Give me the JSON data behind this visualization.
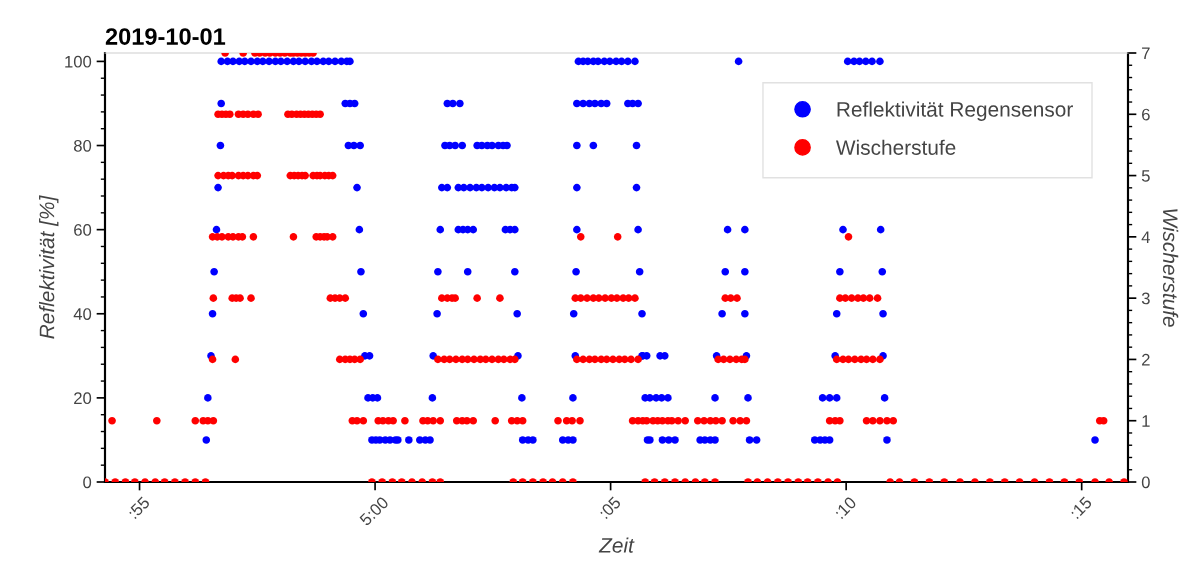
{
  "chart_data": {
    "type": "scatter",
    "title": "2019-10-01",
    "xlabel": "Zeit",
    "ylabel": "Reflektivität [%]",
    "y2label": "Wischerstufe",
    "xlim": [
      "2019-10-01T04:54:16",
      "2019-10-01T05:15:59"
    ],
    "xticks": [
      {
        "value": "2019-10-01T04:55",
        "label": ":55"
      },
      {
        "value": "2019-10-01T05:00",
        "label": "5:00"
      },
      {
        "value": "2019-10-01T05:05",
        "label": ":05"
      },
      {
        "value": "2019-10-01T05:10",
        "label": ":10"
      },
      {
        "value": "2019-10-01T05:15",
        "label": ":15"
      }
    ],
    "ylim": [
      0,
      102
    ],
    "yticks": [
      0,
      20,
      40,
      60,
      80,
      100
    ],
    "y2lim": [
      0,
      7
    ],
    "y2ticks": [
      0,
      1,
      2,
      3,
      4,
      5,
      6,
      7
    ],
    "marker": "circle",
    "legend": "top right",
    "series": [
      {
        "name": "Reflektivität Regensensor",
        "color": "#0000ff",
        "x": [
          "2019-10-01T04:56:25",
          "2019-10-01T04:56:27",
          "2019-10-01T04:56:31",
          "2019-10-01T04:56:33",
          "2019-10-01T04:56:35",
          "2019-10-01T04:56:38",
          "2019-10-01T04:56:40",
          "2019-10-01T04:56:43",
          "2019-10-01T04:56:44",
          "2019-10-01T04:56:44",
          "2019-10-01T04:56:52",
          "2019-10-01T04:56:59",
          "2019-10-01T04:57:07",
          "2019-10-01T04:57:14",
          "2019-10-01T04:57:22",
          "2019-10-01T04:57:30",
          "2019-10-01T04:57:37",
          "2019-10-01T04:57:45",
          "2019-10-01T04:57:53",
          "2019-10-01T04:58:00",
          "2019-10-01T04:58:08",
          "2019-10-01T04:58:16",
          "2019-10-01T04:58:23",
          "2019-10-01T04:58:31",
          "2019-10-01T04:58:39",
          "2019-10-01T04:58:46",
          "2019-10-01T04:58:54",
          "2019-10-01T04:59:01",
          "2019-10-01T04:59:09",
          "2019-10-01T04:59:17",
          "2019-10-01T04:59:24",
          "2019-10-01T04:59:28",
          "2019-10-01T04:59:22",
          "2019-10-01T04:59:28",
          "2019-10-01T04:59:34",
          "2019-10-01T04:59:26",
          "2019-10-01T04:59:33",
          "2019-10-01T04:59:41",
          "2019-10-01T04:59:37",
          "2019-10-01T04:59:40",
          "2019-10-01T04:59:42",
          "2019-10-01T04:59:45",
          "2019-10-01T04:59:47",
          "2019-10-01T04:59:53",
          "2019-10-01T04:59:51",
          "2019-10-01T04:59:57",
          "2019-10-01T05:00:03",
          "2019-10-01T04:59:56",
          "2019-10-01T05:00:01",
          "2019-10-01T05:00:06",
          "2019-10-01T05:00:13",
          "2019-10-01T05:00:19",
          "2019-10-01T05:00:26",
          "2019-10-01T05:00:29",
          "2019-10-01T05:00:43",
          "2019-10-01T05:00:57",
          "2019-10-01T05:01:04",
          "2019-10-01T05:01:10",
          "2019-10-01T05:01:13",
          "2019-10-01T05:01:14",
          "2019-10-01T05:01:19",
          "2019-10-01T05:01:20",
          "2019-10-01T05:01:23",
          "2019-10-01T05:01:25",
          "2019-10-01T05:01:29",
          "2019-10-01T05:01:32",
          "2019-10-01T05:01:39",
          "2019-10-01T05:01:48",
          "2019-10-01T05:01:35",
          "2019-10-01T05:01:42",
          "2019-10-01T05:01:51",
          "2019-10-01T05:02:10",
          "2019-10-01T05:02:16",
          "2019-10-01T05:02:23",
          "2019-10-01T05:02:29",
          "2019-10-01T05:02:37",
          "2019-10-01T05:02:43",
          "2019-10-01T05:02:48",
          "2019-10-01T05:01:32",
          "2019-10-01T05:01:46",
          "2019-10-01T05:01:53",
          "2019-10-01T05:02:01",
          "2019-10-01T05:02:09",
          "2019-10-01T05:02:16",
          "2019-10-01T05:02:24",
          "2019-10-01T05:02:32",
          "2019-10-01T05:02:39",
          "2019-10-01T05:02:47",
          "2019-10-01T05:02:54",
          "2019-10-01T05:02:58",
          "2019-10-01T05:01:46",
          "2019-10-01T05:01:52",
          "2019-10-01T05:01:58",
          "2019-10-01T05:02:05",
          "2019-10-01T05:02:46",
          "2019-10-01T05:02:52",
          "2019-10-01T05:02:58",
          "2019-10-01T05:01:58",
          "2019-10-01T05:02:58",
          "2019-10-01T05:03:01",
          "2019-10-01T05:03:02",
          "2019-10-01T05:03:07",
          "2019-10-01T05:03:08",
          "2019-10-01T05:03:15",
          "2019-10-01T05:03:21",
          "2019-10-01T05:03:59",
          "2019-10-01T05:04:06",
          "2019-10-01T05:04:12",
          "2019-10-01T05:04:12",
          "2019-10-01T05:04:13",
          "2019-10-01T05:04:15",
          "2019-10-01T05:04:16",
          "2019-10-01T05:04:17",
          "2019-10-01T05:04:17",
          "2019-10-01T05:04:17",
          "2019-10-01T05:04:38",
          "2019-10-01T05:04:17",
          "2019-10-01T05:04:25",
          "2019-10-01T05:04:33",
          "2019-10-01T05:04:40",
          "2019-10-01T05:04:48",
          "2019-10-01T05:04:55",
          "2019-10-01T05:05:22",
          "2019-10-01T05:05:28",
          "2019-10-01T05:05:35",
          "2019-10-01T05:04:19",
          "2019-10-01T05:04:25",
          "2019-10-01T05:04:31",
          "2019-10-01T05:04:38",
          "2019-10-01T05:04:44",
          "2019-10-01T05:04:52",
          "2019-10-01T05:04:59",
          "2019-10-01T05:05:07",
          "2019-10-01T05:05:14",
          "2019-10-01T05:05:22",
          "2019-10-01T05:05:31",
          "2019-10-01T05:05:33",
          "2019-10-01T05:05:33",
          "2019-10-01T05:05:35",
          "2019-10-01T05:05:37",
          "2019-10-01T05:05:40",
          "2019-10-01T05:05:41",
          "2019-10-01T05:05:44",
          "2019-10-01T05:05:47",
          "2019-10-01T05:05:50",
          "2019-10-01T05:06:06",
          "2019-10-01T05:06:14",
          "2019-10-01T05:06:22",
          "2019-10-01T05:06:54",
          "2019-10-01T05:07:00",
          "2019-10-01T05:07:07",
          "2019-10-01T05:07:13",
          "2019-10-01T05:07:57",
          "2019-10-01T05:08:06",
          "2019-10-01T05:09:20",
          "2019-10-01T05:09:27",
          "2019-10-01T05:09:33",
          "2019-10-01T05:09:39",
          "2019-10-01T05:10:52",
          "2019-10-01T05:05:50",
          "2019-10-01T05:05:58",
          "2019-10-01T05:06:05",
          "2019-10-01T05:06:13",
          "2019-10-01T05:07:13",
          "2019-10-01T05:07:55",
          "2019-10-01T05:09:30",
          "2019-10-01T05:09:39",
          "2019-10-01T05:09:48",
          "2019-10-01T05:10:49",
          "2019-10-01T05:05:40",
          "2019-10-01T05:05:46",
          "2019-10-01T05:06:03",
          "2019-10-01T05:06:09",
          "2019-10-01T05:07:15",
          "2019-10-01T05:07:53",
          "2019-10-01T05:09:46",
          "2019-10-01T05:10:47",
          "2019-10-01T05:07:22",
          "2019-10-01T05:07:51",
          "2019-10-01T05:09:48",
          "2019-10-01T05:10:47",
          "2019-10-01T05:07:26",
          "2019-10-01T05:07:51",
          "2019-10-01T05:09:52",
          "2019-10-01T05:10:46",
          "2019-10-01T05:07:29",
          "2019-10-01T05:07:51",
          "2019-10-01T05:09:56",
          "2019-10-01T05:10:44",
          "2019-10-01T05:07:43",
          "2019-10-01T05:10:02",
          "2019-10-01T05:10:10",
          "2019-10-01T05:10:17",
          "2019-10-01T05:10:25",
          "2019-10-01T05:10:33",
          "2019-10-01T05:10:43",
          "2019-10-01T05:15:17"
        ],
        "values": [
          10,
          20,
          30,
          40,
          50,
          60,
          70,
          80,
          90,
          100,
          100,
          100,
          100,
          100,
          100,
          100,
          100,
          100,
          100,
          100,
          100,
          100,
          100,
          100,
          100,
          100,
          100,
          100,
          100,
          100,
          100,
          100,
          90,
          90,
          90,
          80,
          80,
          80,
          70,
          60,
          50,
          40,
          30,
          30,
          20,
          20,
          20,
          10,
          10,
          10,
          10,
          10,
          10,
          10,
          10,
          10,
          10,
          10,
          20,
          30,
          40,
          50,
          60,
          70,
          80,
          90,
          90,
          90,
          80,
          80,
          80,
          80,
          80,
          80,
          80,
          80,
          80,
          80,
          70,
          70,
          70,
          70,
          70,
          70,
          70,
          70,
          70,
          70,
          70,
          70,
          60,
          60,
          60,
          60,
          60,
          60,
          60,
          50,
          50,
          40,
          30,
          20,
          10,
          10,
          10,
          10,
          10,
          10,
          20,
          40,
          30,
          50,
          60,
          70,
          80,
          80,
          90,
          90,
          90,
          90,
          90,
          90,
          90,
          90,
          90,
          100,
          100,
          100,
          100,
          100,
          100,
          100,
          100,
          100,
          100,
          100,
          80,
          70,
          60,
          50,
          40,
          30,
          20,
          10,
          10,
          10,
          10,
          10,
          10,
          10,
          10,
          10,
          10,
          10,
          10,
          10,
          10,
          10,
          10,
          20,
          20,
          20,
          20,
          20,
          20,
          20,
          20,
          20,
          20,
          30,
          30,
          30,
          30,
          30,
          30,
          30,
          30,
          40,
          40,
          40,
          40,
          50,
          50,
          50,
          50,
          60,
          60,
          60,
          60,
          100,
          100,
          100,
          100,
          100,
          100,
          100,
          10
        ]
      },
      {
        "name": "Wischerstufe",
        "color": "#ff0000",
        "axis": "y2",
        "x": [
          "2019-10-01T04:54:16",
          "2019-10-01T04:54:29",
          "2019-10-01T04:54:42",
          "2019-10-01T04:54:54",
          "2019-10-01T04:55:07",
          "2019-10-01T04:55:20",
          "2019-10-01T04:55:32",
          "2019-10-01T04:55:45",
          "2019-10-01T04:55:58",
          "2019-10-01T04:56:11",
          "2019-10-01T04:56:24",
          "2019-10-01T04:59:56",
          "2019-10-01T05:00:09",
          "2019-10-01T05:00:22",
          "2019-10-01T05:00:34",
          "2019-10-01T05:00:47",
          "2019-10-01T05:01:00",
          "2019-10-01T05:01:13",
          "2019-10-01T05:01:23",
          "2019-10-01T05:02:56",
          "2019-10-01T05:03:08",
          "2019-10-01T05:03:21",
          "2019-10-01T05:03:34",
          "2019-10-01T05:03:46",
          "2019-10-01T05:03:59",
          "2019-10-01T05:04:12",
          "2019-10-01T05:05:44",
          "2019-10-01T05:05:56",
          "2019-10-01T05:06:09",
          "2019-10-01T05:06:22",
          "2019-10-01T05:06:35",
          "2019-10-01T05:06:48",
          "2019-10-01T05:07:00",
          "2019-10-01T05:07:13",
          "2019-10-01T05:07:55",
          "2019-10-01T05:08:07",
          "2019-10-01T05:08:20",
          "2019-10-01T05:08:33",
          "2019-10-01T05:08:46",
          "2019-10-01T05:08:59",
          "2019-10-01T05:09:11",
          "2019-10-01T05:09:24",
          "2019-10-01T05:09:37",
          "2019-10-01T05:09:49",
          "2019-10-01T05:10:56",
          "2019-10-01T05:11:08",
          "2019-10-01T05:11:27",
          "2019-10-01T05:11:46",
          "2019-10-01T05:12:05",
          "2019-10-01T05:12:25",
          "2019-10-01T05:12:44",
          "2019-10-01T05:13:03",
          "2019-10-01T05:13:22",
          "2019-10-01T05:13:41",
          "2019-10-01T05:14:00",
          "2019-10-01T05:14:19",
          "2019-10-01T05:14:38",
          "2019-10-01T05:14:57",
          "2019-10-01T05:15:17",
          "2019-10-01T05:15:35",
          "2019-10-01T05:15:54",
          "2019-10-01T04:54:25",
          "2019-10-01T04:55:22",
          "2019-10-01T04:56:11",
          "2019-10-01T04:56:21",
          "2019-10-01T04:56:27",
          "2019-10-01T04:56:34",
          "2019-10-01T04:59:31",
          "2019-10-01T04:59:37",
          "2019-10-01T04:59:45",
          "2019-10-01T05:00:04",
          "2019-10-01T05:00:10",
          "2019-10-01T05:00:17",
          "2019-10-01T05:00:23",
          "2019-10-01T05:00:38",
          "2019-10-01T05:01:01",
          "2019-10-01T05:01:07",
          "2019-10-01T05:01:14",
          "2019-10-01T05:01:23",
          "2019-10-01T05:01:44",
          "2019-10-01T05:01:51",
          "2019-10-01T05:01:57",
          "2019-10-01T05:02:05",
          "2019-10-01T05:02:33",
          "2019-10-01T05:02:54",
          "2019-10-01T05:03:01",
          "2019-10-01T05:03:08",
          "2019-10-01T05:03:53",
          "2019-10-01T05:04:04",
          "2019-10-01T05:04:11",
          "2019-10-01T05:04:21",
          "2019-10-01T05:05:28",
          "2019-10-01T05:05:35",
          "2019-10-01T05:05:41",
          "2019-10-01T05:05:46",
          "2019-10-01T05:05:54",
          "2019-10-01T05:06:00",
          "2019-10-01T05:06:06",
          "2019-10-01T05:06:13",
          "2019-10-01T05:06:18",
          "2019-10-01T05:06:26",
          "2019-10-01T05:06:35",
          "2019-10-01T05:06:51",
          "2019-10-01T05:06:59",
          "2019-10-01T05:07:07",
          "2019-10-01T05:07:14",
          "2019-10-01T05:07:22",
          "2019-10-01T05:07:36",
          "2019-10-01T05:07:45",
          "2019-10-01T05:07:53",
          "2019-10-01T05:09:39",
          "2019-10-01T05:09:46",
          "2019-10-01T05:09:52",
          "2019-10-01T05:10:26",
          "2019-10-01T05:10:34",
          "2019-10-01T05:10:43",
          "2019-10-01T05:10:52",
          "2019-10-01T05:11:00",
          "2019-10-01T05:15:23",
          "2019-10-01T05:15:28",
          "2019-10-01T04:56:33",
          "2019-10-01T04:57:02",
          "2019-10-01T04:59:15",
          "2019-10-01T04:59:22",
          "2019-10-01T04:59:28",
          "2019-10-01T04:59:34",
          "2019-10-01T04:59:41",
          "2019-10-01T05:01:20",
          "2019-10-01T05:01:28",
          "2019-10-01T05:01:35",
          "2019-10-01T05:01:43",
          "2019-10-01T05:01:51",
          "2019-10-01T05:01:58",
          "2019-10-01T05:02:06",
          "2019-10-01T05:02:14",
          "2019-10-01T05:02:21",
          "2019-10-01T05:02:29",
          "2019-10-01T05:02:37",
          "2019-10-01T05:02:44",
          "2019-10-01T05:02:52",
          "2019-10-01T05:02:58",
          "2019-10-01T05:04:17",
          "2019-10-01T05:04:25",
          "2019-10-01T05:04:33",
          "2019-10-01T05:04:40",
          "2019-10-01T05:04:48",
          "2019-10-01T05:04:55",
          "2019-10-01T05:05:03",
          "2019-10-01T05:05:11",
          "2019-10-01T05:05:18",
          "2019-10-01T05:05:26",
          "2019-10-01T05:05:35",
          "2019-10-01T05:07:17",
          "2019-10-01T05:07:24",
          "2019-10-01T05:07:32",
          "2019-10-01T05:07:40",
          "2019-10-01T05:07:47",
          "2019-10-01T05:07:51",
          "2019-10-01T05:09:48",
          "2019-10-01T05:09:56",
          "2019-10-01T05:10:03",
          "2019-10-01T05:10:11",
          "2019-10-01T05:10:19",
          "2019-10-01T05:10:26",
          "2019-10-01T05:10:34",
          "2019-10-01T05:10:43",
          "2019-10-01T04:56:34",
          "2019-10-01T04:56:58",
          "2019-10-01T04:57:03",
          "2019-10-01T04:57:08",
          "2019-10-01T04:57:22",
          "2019-10-01T04:59:03",
          "2019-10-01T04:59:09",
          "2019-10-01T04:59:15",
          "2019-10-01T04:59:22",
          "2019-10-01T05:01:25",
          "2019-10-01T05:01:32",
          "2019-10-01T05:01:38",
          "2019-10-01T05:01:42",
          "2019-10-01T05:02:10",
          "2019-10-01T05:02:39",
          "2019-10-01T05:04:15",
          "2019-10-01T05:04:22",
          "2019-10-01T05:04:30",
          "2019-10-01T05:04:38",
          "2019-10-01T05:04:45",
          "2019-10-01T05:04:53",
          "2019-10-01T05:05:01",
          "2019-10-01T05:05:08",
          "2019-10-01T05:05:16",
          "2019-10-01T05:05:23",
          "2019-10-01T05:05:31",
          "2019-10-01T05:07:26",
          "2019-10-01T05:07:33",
          "2019-10-01T05:07:41",
          "2019-10-01T05:09:52",
          "2019-10-01T05:09:59",
          "2019-10-01T05:10:07",
          "2019-10-01T05:10:15",
          "2019-10-01T05:10:22",
          "2019-10-01T05:10:30",
          "2019-10-01T05:10:40",
          "2019-10-01T04:56:33",
          "2019-10-01T04:56:39",
          "2019-10-01T04:56:45",
          "2019-10-01T04:56:53",
          "2019-10-01T04:56:59",
          "2019-10-01T04:57:06",
          "2019-10-01T04:57:11",
          "2019-10-01T04:57:25",
          "2019-10-01T04:58:16",
          "2019-10-01T04:58:45",
          "2019-10-01T04:58:50",
          "2019-10-01T04:58:55",
          "2019-10-01T04:58:59",
          "2019-10-01T04:59:06",
          "2019-10-01T05:04:22",
          "2019-10-01T05:05:09",
          "2019-10-01T05:10:03",
          "2019-10-01T04:56:40",
          "2019-10-01T04:56:47",
          "2019-10-01T04:56:53",
          "2019-10-01T04:56:58",
          "2019-10-01T04:57:06",
          "2019-10-01T04:57:12",
          "2019-10-01T04:57:18",
          "2019-10-01T04:57:25",
          "2019-10-01T04:57:30",
          "2019-10-01T04:58:12",
          "2019-10-01T04:58:17",
          "2019-10-01T04:58:22",
          "2019-10-01T04:58:27",
          "2019-10-01T04:58:31",
          "2019-10-01T04:58:41",
          "2019-10-01T04:58:46",
          "2019-10-01T04:58:50",
          "2019-10-01T04:58:56",
          "2019-10-01T04:59:01",
          "2019-10-01T04:59:06",
          "2019-10-01T04:56:40",
          "2019-10-01T04:56:45",
          "2019-10-01T04:56:50",
          "2019-10-01T04:56:55",
          "2019-10-01T04:57:06",
          "2019-10-01T04:57:12",
          "2019-10-01T04:57:18",
          "2019-10-01T04:57:25",
          "2019-10-01T04:57:31",
          "2019-10-01T04:58:09",
          "2019-10-01T04:58:14",
          "2019-10-01T04:58:20",
          "2019-10-01T04:58:25",
          "2019-10-01T04:58:30",
          "2019-10-01T04:58:35",
          "2019-10-01T04:58:40",
          "2019-10-01T04:58:45",
          "2019-10-01T04:58:50",
          "2019-10-01T04:56:49",
          "2019-10-01T04:57:12",
          "2019-10-01T04:57:27",
          "2019-10-01T04:57:33",
          "2019-10-01T04:57:40",
          "2019-10-01T04:57:46",
          "2019-10-01T04:57:53",
          "2019-10-01T04:57:59",
          "2019-10-01T04:58:05",
          "2019-10-01T04:58:12",
          "2019-10-01T04:58:16",
          "2019-10-01T04:58:21",
          "2019-10-01T04:58:26",
          "2019-10-01T04:58:31",
          "2019-10-01T04:58:36",
          "2019-10-01T04:58:41"
        ],
        "values": [
          0,
          0,
          0,
          0,
          0,
          0,
          0,
          0,
          0,
          0,
          0,
          0,
          0,
          0,
          0,
          0,
          0,
          0,
          0,
          0,
          0,
          0,
          0,
          0,
          0,
          0,
          0,
          0,
          0,
          0,
          0,
          0,
          0,
          0,
          0,
          0,
          0,
          0,
          0,
          0,
          0,
          0,
          0,
          0,
          0,
          0,
          0,
          0,
          0,
          0,
          0,
          0,
          0,
          0,
          0,
          0,
          0,
          0,
          0,
          0,
          0,
          1,
          1,
          1,
          1,
          1,
          1,
          1,
          1,
          1,
          1,
          1,
          1,
          1,
          1,
          1,
          1,
          1,
          1,
          1,
          1,
          1,
          1,
          1,
          1,
          1,
          1,
          1,
          1,
          1,
          1,
          1,
          1,
          1,
          1,
          1,
          1,
          1,
          1,
          1,
          1,
          1,
          1,
          1,
          1,
          1,
          1,
          1,
          1,
          1,
          1,
          1,
          1,
          1,
          1,
          1,
          1,
          1,
          1,
          1,
          2,
          2,
          2,
          2,
          2,
          2,
          2,
          2,
          2,
          2,
          2,
          2,
          2,
          2,
          2,
          2,
          2,
          2,
          2,
          2,
          2,
          2,
          2,
          2,
          2,
          2,
          2,
          2,
          2,
          2,
          2,
          2,
          2,
          2,
          2,
          2,
          2,
          2,
          2,
          2,
          2,
          2,
          2,
          2,
          2,
          2,
          3,
          3,
          3,
          3,
          3,
          3,
          3,
          3,
          3,
          3,
          3,
          3,
          3,
          3,
          3,
          3,
          3,
          3,
          3,
          3,
          3,
          3,
          3,
          3,
          3,
          3,
          3,
          3,
          3,
          3,
          3,
          3,
          3,
          3,
          3,
          3,
          4,
          4,
          4,
          4,
          4,
          4,
          4,
          4,
          4,
          4,
          4,
          4,
          4,
          4,
          4,
          4,
          4,
          5,
          5,
          5,
          5,
          5,
          5,
          5,
          5,
          5,
          5,
          5,
          5,
          5,
          5,
          5,
          5,
          5,
          5,
          5,
          5,
          6,
          6,
          6,
          6,
          6,
          6,
          6,
          6,
          6,
          6,
          6,
          6,
          6,
          6,
          6,
          6,
          6,
          6,
          7,
          7,
          7,
          7,
          7,
          7,
          7,
          7,
          7,
          7,
          7,
          7,
          7,
          7,
          7,
          7
        ]
      }
    ]
  }
}
